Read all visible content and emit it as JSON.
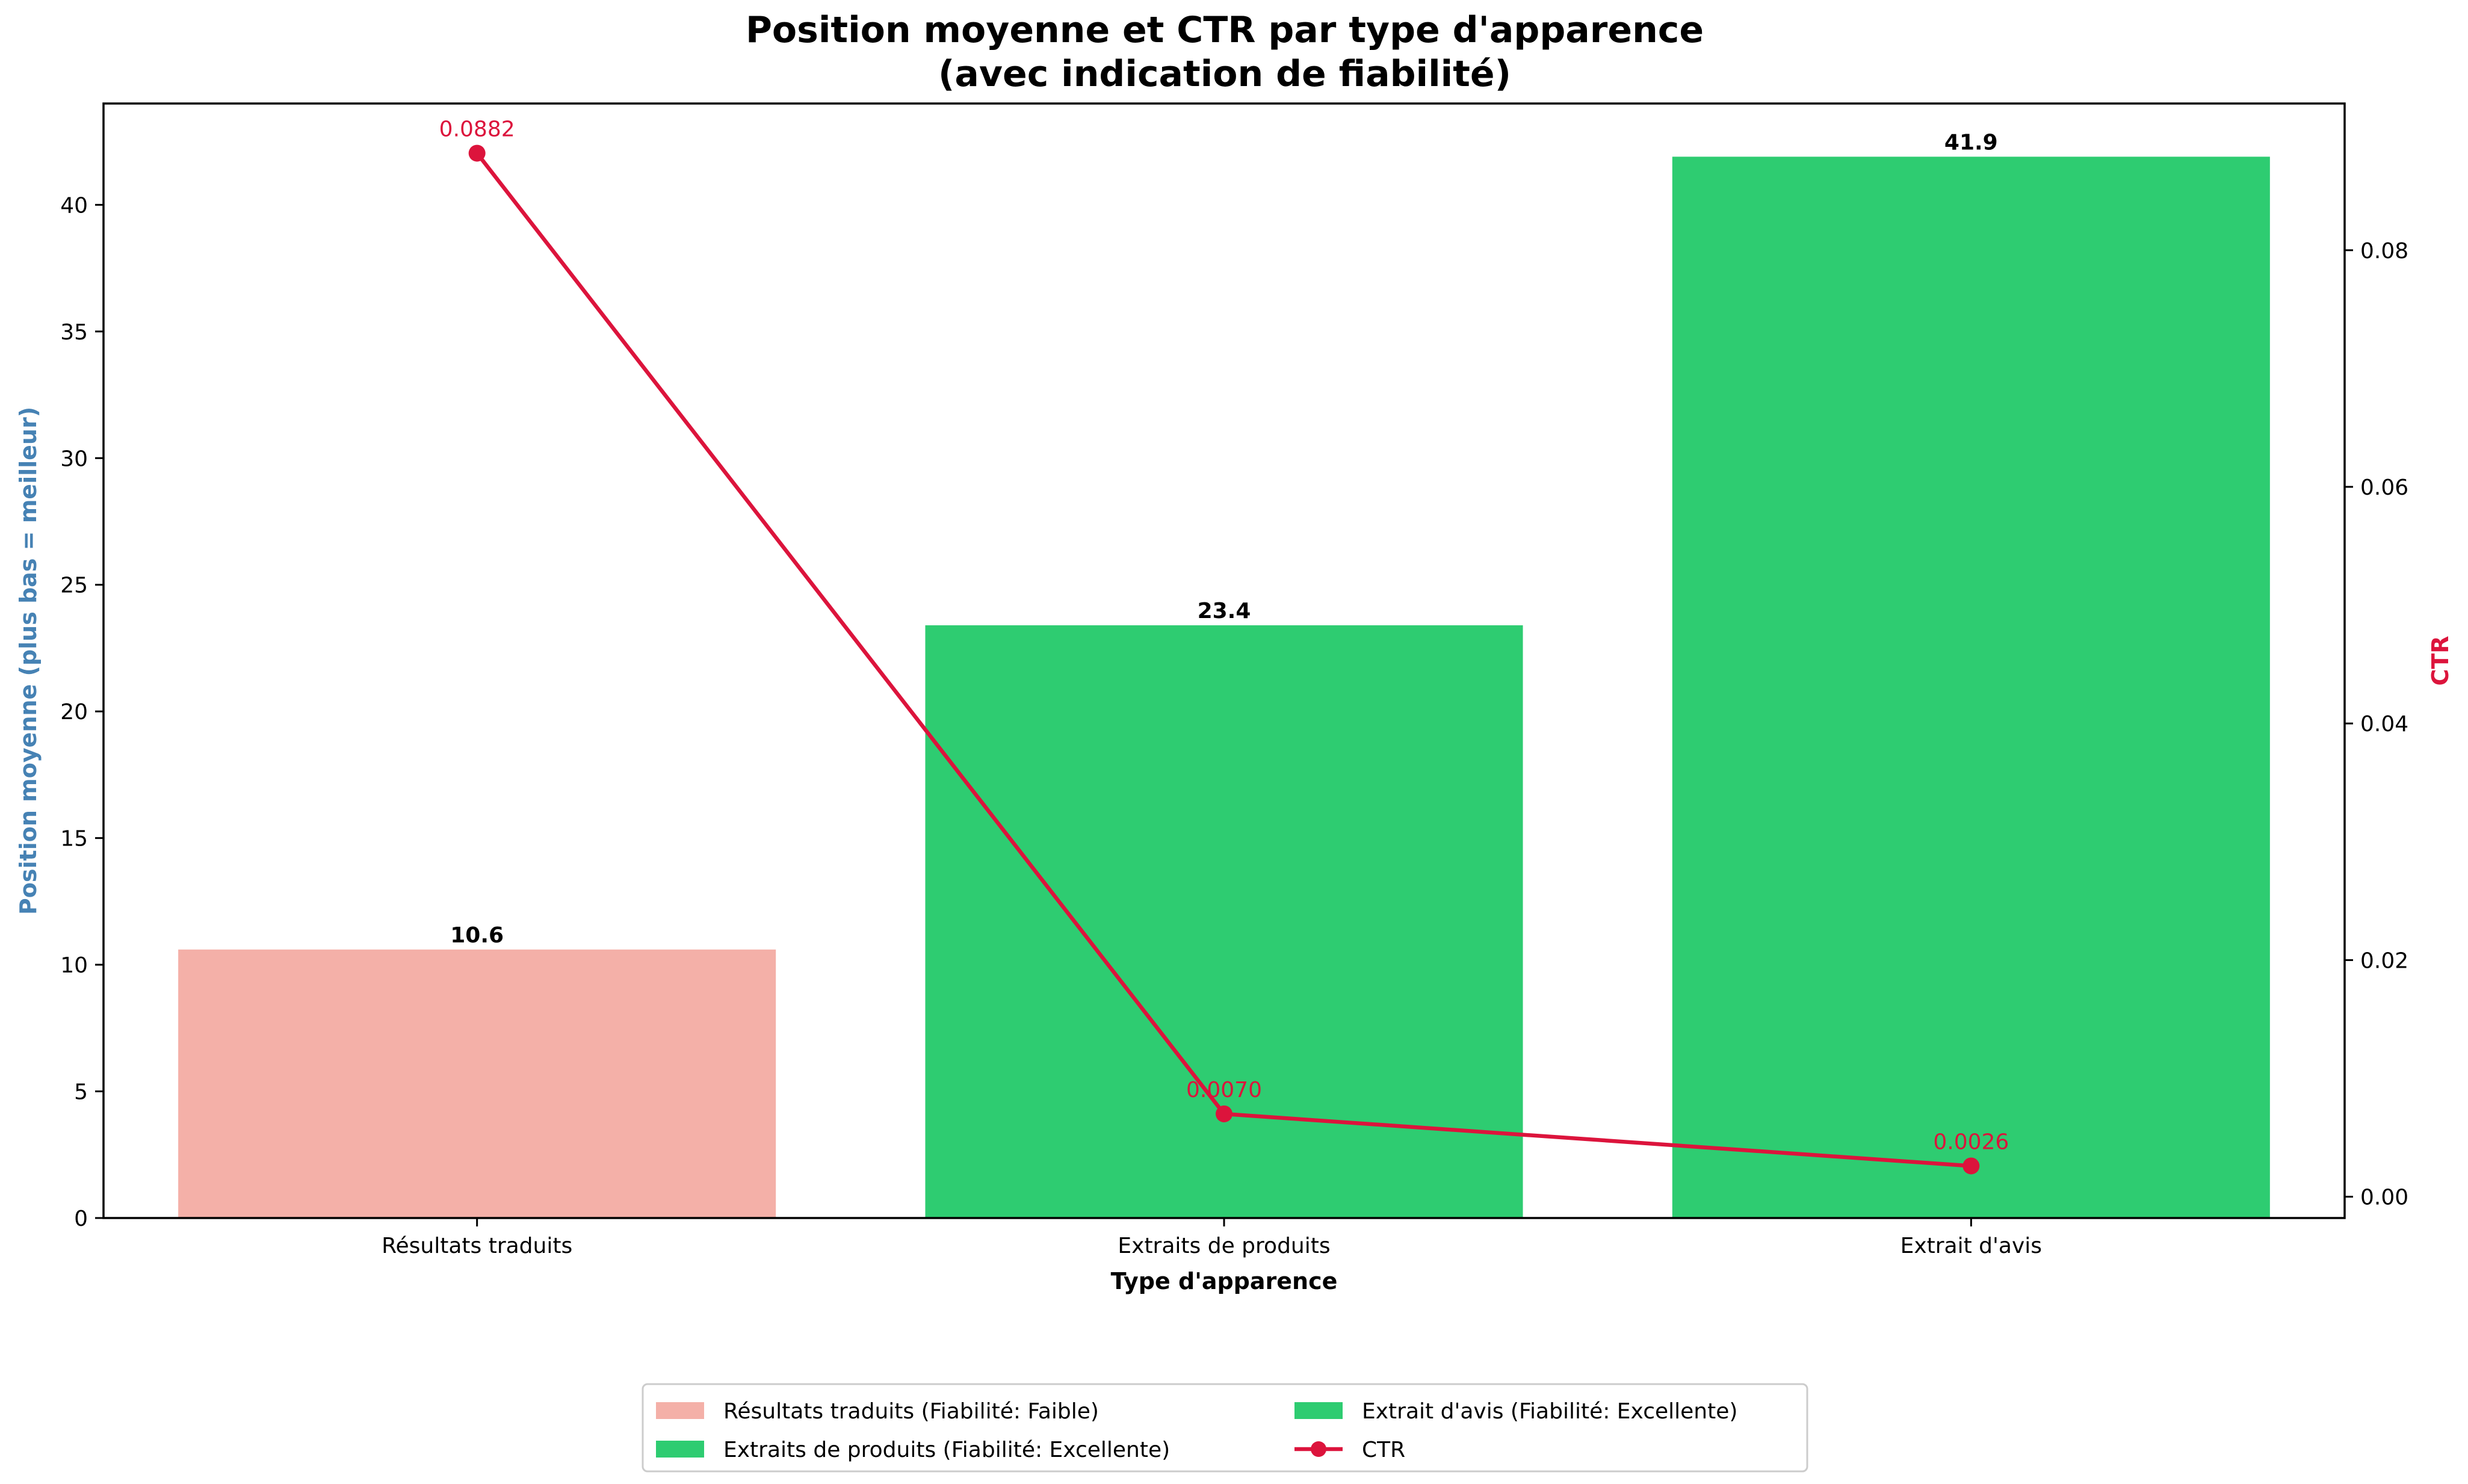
{
  "chart_data": {
    "type": "bar",
    "title": "Position moyenne et CTR par type d'apparence",
    "subtitle": "(avec indication de fiabilité)",
    "xlabel": "Type d'apparence",
    "ylabel_left": "Position moyenne (plus bas = meilleur)",
    "ylabel_right": "CTR",
    "categories": [
      "Résultats traduits",
      "Extraits de produits",
      "Extrait d'avis"
    ],
    "bar_values": [
      10.6,
      23.4,
      41.9
    ],
    "bar_labels": [
      "10.6",
      "23.4",
      "41.9"
    ],
    "bar_colors": [
      "#f4b0a8",
      "#2ecc71",
      "#2ecc71"
    ],
    "ctr_values": [
      0.0882,
      0.007,
      0.0026
    ],
    "ctr_labels": [
      "0.0882",
      "0.0070",
      "0.0026"
    ],
    "line_color": "#dc143c",
    "ylim_left": [
      0,
      44
    ],
    "ylim_right": [
      -0.0018,
      0.0924
    ],
    "yticks_left": [
      "0",
      "5",
      "10",
      "15",
      "20",
      "25",
      "30",
      "35",
      "40"
    ],
    "yticks_right": [
      "0.00",
      "0.02",
      "0.04",
      "0.06",
      "0.08"
    ],
    "ylabel_left_color": "#4682b4",
    "grid": false,
    "legend_placement": "bottom-center",
    "legend": [
      {
        "label": "Résultats traduits (Fiabilité: Faible)",
        "color": "#f4b0a8",
        "kind": "bar"
      },
      {
        "label": "Extraits de produits (Fiabilité: Excellente)",
        "color": "#2ecc71",
        "kind": "bar"
      },
      {
        "label": "Extrait d'avis (Fiabilité: Excellente)",
        "color": "#2ecc71",
        "kind": "bar"
      },
      {
        "label": "CTR",
        "color": "#dc143c",
        "kind": "line"
      }
    ]
  }
}
